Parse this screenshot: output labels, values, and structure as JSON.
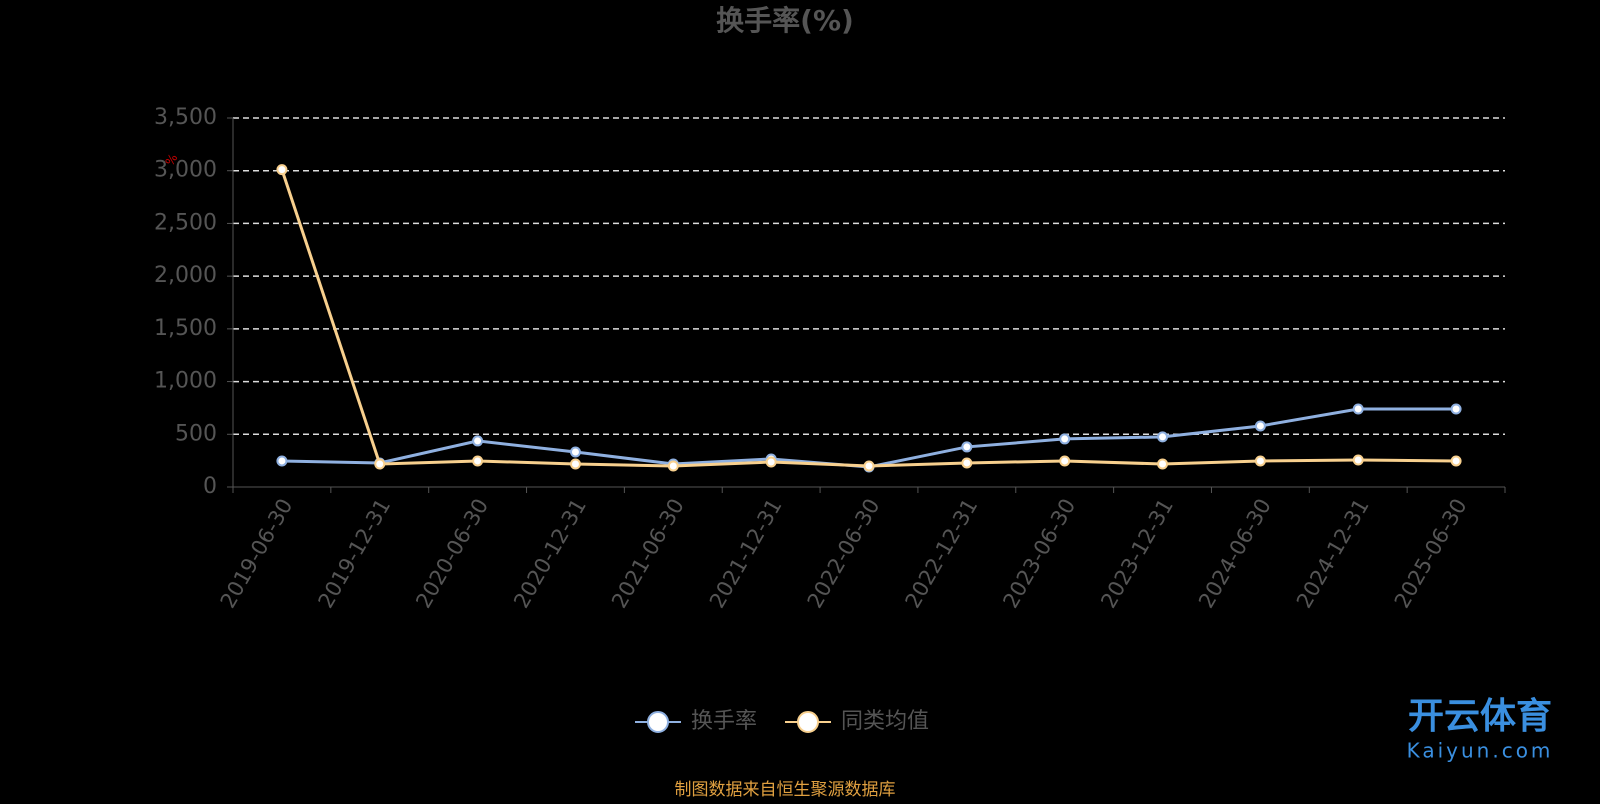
{
  "chart_data": {
    "type": "line",
    "title": "换手率(%)",
    "y_unit": "%",
    "categories": [
      "2019-06-30",
      "2019-12-31",
      "2020-06-30",
      "2020-12-31",
      "2021-06-30",
      "2021-12-31",
      "2022-06-30",
      "2022-12-31",
      "2023-06-30",
      "2023-12-31",
      "2024-06-30",
      "2024-12-31",
      "2025-06-30"
    ],
    "series": [
      {
        "name": "换手率",
        "color": "#8fb0e0",
        "values": [
          247,
          228,
          437,
          332,
          218,
          266,
          190,
          380,
          456,
          475,
          579,
          740,
          740
        ]
      },
      {
        "name": "同类均值",
        "color": "#f8d08e",
        "values": [
          3010,
          218,
          247,
          218,
          199,
          237,
          199,
          228,
          247,
          218,
          247,
          256,
          247
        ]
      }
    ],
    "ylim": [
      0,
      3500
    ],
    "yticks": [
      0,
      500,
      {
        "value": 1000,
        "label": "1,000"
      },
      {
        "value": 1500,
        "label": "1,500"
      },
      {
        "value": 2000,
        "label": "2,000"
      },
      {
        "value": 2500,
        "label": "2,500"
      },
      {
        "value": 3000,
        "label": "3,000"
      },
      {
        "value": 3500,
        "label": "3,500"
      }
    ],
    "grid": true,
    "legend": "bottom",
    "source": "制图数据来自恒生聚源数据库",
    "watermark": {
      "brand": "开云体育",
      "site": "Kaiyun.com"
    }
  }
}
